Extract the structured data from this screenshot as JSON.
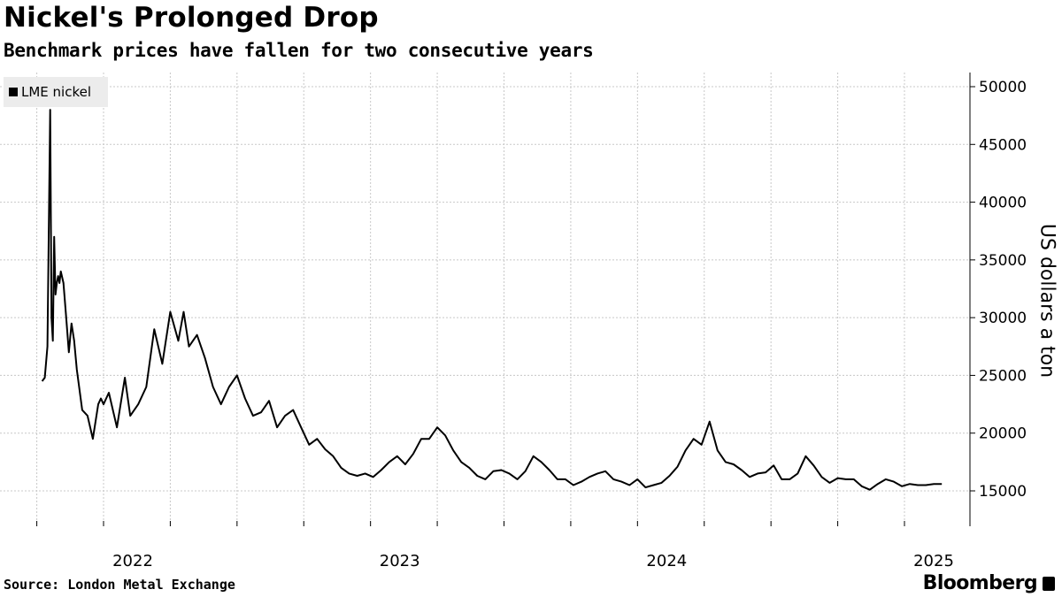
{
  "header": {
    "title": "Nickel's Prolonged Drop",
    "subtitle": "Benchmark prices have fallen for two consecutive years"
  },
  "footer": {
    "source": "Source: London Metal Exchange",
    "brand": "Bloomberg"
  },
  "chart_data": {
    "type": "line",
    "title": "Nickel's Prolonged Drop",
    "subtitle": "Benchmark prices have fallen for two consecutive years",
    "xlabel": "",
    "ylabel": "US dollars a ton",
    "ylim": [
      11500,
      51500
    ],
    "xlim": [
      2021.77,
      2025.17
    ],
    "y_ticks": [
      15000,
      20000,
      25000,
      30000,
      35000,
      40000,
      45000,
      50000
    ],
    "x_ticks": [
      {
        "label": "2022",
        "value": 2022.0
      },
      {
        "label": "2023",
        "value": 2023.0
      },
      {
        "label": "2024",
        "value": 2024.0
      },
      {
        "label": "2025",
        "value": 2025.0
      }
    ],
    "grid": true,
    "legend": "top-left",
    "series": [
      {
        "name": "LME nickel",
        "color": "#000000",
        "x": [
          2021.77,
          2021.78,
          2021.79,
          2021.8,
          2021.805,
          2021.81,
          2021.815,
          2021.82,
          2021.825,
          2021.83,
          2021.835,
          2021.84,
          2021.845,
          2021.85,
          2021.86,
          2021.87,
          2021.88,
          2021.89,
          2021.9,
          2021.92,
          2021.94,
          2021.96,
          2021.98,
          2021.99,
          2022.0,
          2022.02,
          2022.05,
          2022.08,
          2022.1,
          2022.13,
          2022.16,
          2022.19,
          2022.22,
          2022.25,
          2022.28,
          2022.3,
          2022.32,
          2022.35,
          2022.38,
          2022.41,
          2022.44,
          2022.47,
          2022.5,
          2022.53,
          2022.56,
          2022.59,
          2022.62,
          2022.65,
          2022.68,
          2022.71,
          2022.74,
          2022.77,
          2022.8,
          2022.83,
          2022.86,
          2022.89,
          2022.92,
          2022.95,
          2022.98,
          2023.01,
          2023.04,
          2023.07,
          2023.1,
          2023.13,
          2023.16,
          2023.19,
          2023.22,
          2023.25,
          2023.28,
          2023.31,
          2023.34,
          2023.37,
          2023.4,
          2023.43,
          2023.46,
          2023.49,
          2023.52,
          2023.55,
          2023.58,
          2023.61,
          2023.64,
          2023.67,
          2023.7,
          2023.73,
          2023.76,
          2023.79,
          2023.82,
          2023.85,
          2023.88,
          2023.91,
          2023.94,
          2023.97,
          2024.0,
          2024.03,
          2024.06,
          2024.09,
          2024.12,
          2024.15,
          2024.18,
          2024.21,
          2024.24,
          2024.27,
          2024.3,
          2024.33,
          2024.36,
          2024.39,
          2024.42,
          2024.45,
          2024.48,
          2024.51,
          2024.54,
          2024.57,
          2024.6,
          2024.63,
          2024.66,
          2024.69,
          2024.72,
          2024.75,
          2024.78,
          2024.81,
          2024.84,
          2024.87,
          2024.9,
          2024.93,
          2024.96,
          2024.99,
          2025.02,
          2025.05,
          2025.08,
          2025.11,
          2025.14
        ],
        "y": [
          24500,
          24800,
          27500,
          48000,
          30000,
          28000,
          37000,
          32000,
          33000,
          33600,
          33000,
          34000,
          33500,
          33000,
          30000,
          27000,
          29500,
          28000,
          25500,
          22000,
          21500,
          19500,
          22500,
          23000,
          22500,
          23500,
          20500,
          24800,
          21500,
          22500,
          24000,
          29000,
          26000,
          30500,
          28000,
          30500,
          27500,
          28500,
          26500,
          24000,
          22500,
          24000,
          25000,
          23000,
          21500,
          21800,
          22800,
          20500,
          21500,
          22000,
          20500,
          19000,
          19500,
          18600,
          18000,
          17000,
          16500,
          16300,
          16500,
          16200,
          16800,
          17500,
          18000,
          17300,
          18200,
          19500,
          19500,
          20500,
          19800,
          18500,
          17500,
          17000,
          16300,
          16000,
          16700,
          16800,
          16500,
          16000,
          16700,
          18000,
          17500,
          16800,
          16000,
          16000,
          15500,
          15800,
          16200,
          16500,
          16700,
          16000,
          15800,
          15500,
          16000,
          15300,
          15500,
          15700,
          16300,
          17100,
          18500,
          19500,
          19000,
          21000,
          18500,
          17500,
          17300,
          16800,
          16200,
          16500,
          16600,
          17200,
          16000,
          16000,
          16500,
          18000,
          17200,
          16200,
          15700,
          16100,
          16000,
          16000,
          15400,
          15100,
          15600,
          16000,
          15800,
          15400,
          15600,
          15500,
          15500,
          15600,
          15600
        ]
      }
    ]
  }
}
